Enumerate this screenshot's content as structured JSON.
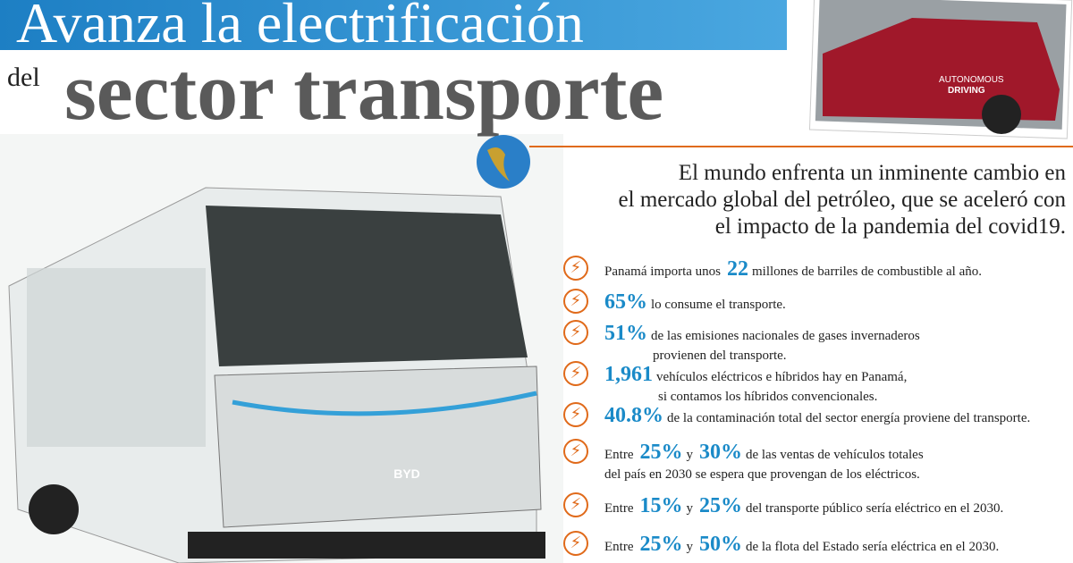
{
  "header": {
    "title_line1": "Avanza la electrificación",
    "title_small": "del",
    "title_line2": "sector transporte"
  },
  "photo_text": {
    "car": [
      "AUTONOMOUS",
      "DRIVING"
    ],
    "bus": "BYD"
  },
  "intro": [
    "El mundo enfrenta un inminente cambio en",
    "el mercado global del petróleo, que se aceleró con",
    "el impacto de la pandemia del covid19."
  ],
  "facts": [
    {
      "lines": [
        [
          {
            "text": "Panamá importa unos"
          },
          {
            "figure": "22"
          },
          {
            "text": "millones de barriles de combustible al año."
          }
        ]
      ]
    },
    {
      "lines": [
        [
          {
            "figure": "65%"
          },
          {
            "text": "lo consume el transporte."
          }
        ]
      ]
    },
    {
      "lines": [
        [
          {
            "figure": "51%"
          },
          {
            "text": "de las emisiones nacionales de gases invernaderos"
          }
        ],
        [
          {
            "text": "provienen del transporte."
          }
        ]
      ]
    },
    {
      "lines": [
        [
          {
            "figure": "1,961"
          },
          {
            "text": "vehículos eléctricos e híbridos hay en Panamá,"
          }
        ],
        [
          {
            "text": "si contamos los híbridos convencionales."
          }
        ]
      ]
    },
    {
      "lines": [
        [
          {
            "figure": "40.8%"
          },
          {
            "text": "de la contaminación total del sector energía proviene del transporte."
          }
        ]
      ]
    },
    {
      "lines": [
        [
          {
            "text": "Entre"
          },
          {
            "figure": "25%"
          },
          {
            "text": "y"
          },
          {
            "figure": "30%"
          },
          {
            "text": "de las ventas de vehículos totales"
          }
        ],
        [
          {
            "text": "del país en 2030 se espera que provengan de los eléctricos."
          }
        ]
      ]
    },
    {
      "lines": [
        [
          {
            "text": "Entre"
          },
          {
            "figure": "15%"
          },
          {
            "text": "y"
          },
          {
            "figure": "25%"
          },
          {
            "text": "del transporte público sería eléctrico en el 2030."
          }
        ]
      ]
    },
    {
      "lines": [
        [
          {
            "text": "Entre"
          },
          {
            "figure": "25%"
          },
          {
            "text": "y"
          },
          {
            "figure": "50%"
          },
          {
            "text": "de la flota del Estado sería eléctrica en el 2030."
          }
        ]
      ]
    }
  ]
}
